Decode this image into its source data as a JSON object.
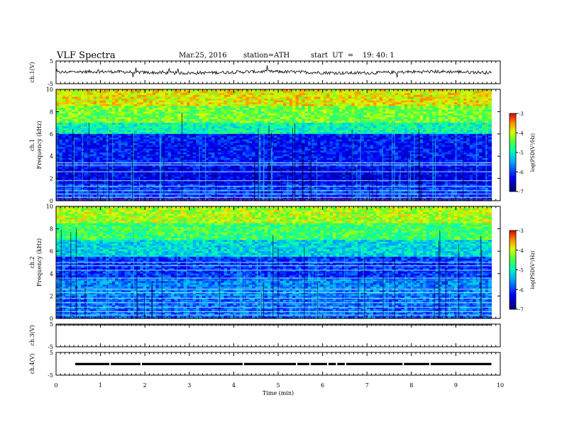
{
  "header": {
    "title": "VLF  Spectra",
    "date": "Mar.25, 2016",
    "station": "station=ATH",
    "start": "start  UT  =    19: 40: 1"
  },
  "chart_data": [
    {
      "type": "line",
      "panel": "ch1",
      "ylabel": "ch.1(V)",
      "yticks": [
        "5",
        "-5"
      ],
      "ylim": [
        -5,
        5
      ],
      "description_level": 0.0
    },
    {
      "type": "heatmap",
      "panel": "ch1-spectrogram",
      "ylabel_top": "ch.1",
      "ylabel": "Frequency  (kHz)",
      "yticks": [
        "10",
        "8",
        "6",
        "4",
        "2",
        "0"
      ],
      "ylim": [
        0,
        10
      ],
      "colorbar": {
        "label": "log(PSD(V²/Hz)",
        "ticks": [
          "-3",
          "-4",
          "-5",
          "-6",
          "-7"
        ],
        "range": [
          -7,
          -3
        ]
      }
    },
    {
      "type": "heatmap",
      "panel": "ch2-spectrogram",
      "ylabel_top": "ch.2",
      "ylabel": "Frequency  (kHz)",
      "yticks": [
        "10",
        "8",
        "6",
        "4",
        "2",
        "0"
      ],
      "ylim": [
        0,
        10
      ],
      "colorbar": {
        "label": "log(PSD(V²/Hz)",
        "ticks": [
          "-3",
          "-4",
          "-5",
          "-6",
          "-7"
        ],
        "range": [
          -7,
          -3
        ]
      }
    },
    {
      "type": "line",
      "panel": "ch3",
      "ylabel": "ch.3(V)",
      "yticks": [
        "5",
        "-5"
      ],
      "ylim": [
        -5,
        5
      ]
    },
    {
      "type": "line",
      "panel": "ch4",
      "ylabel": "ch.4(V)",
      "yticks": [
        "5",
        "-5"
      ],
      "ylim": [
        -5,
        5
      ]
    }
  ],
  "xaxis": {
    "label": "Time  (min)",
    "ticks": [
      "0",
      "1",
      "2",
      "3",
      "4",
      "5",
      "6",
      "7",
      "8",
      "9",
      "10"
    ],
    "xlim": [
      0,
      10
    ],
    "data_end": 9.8
  }
}
